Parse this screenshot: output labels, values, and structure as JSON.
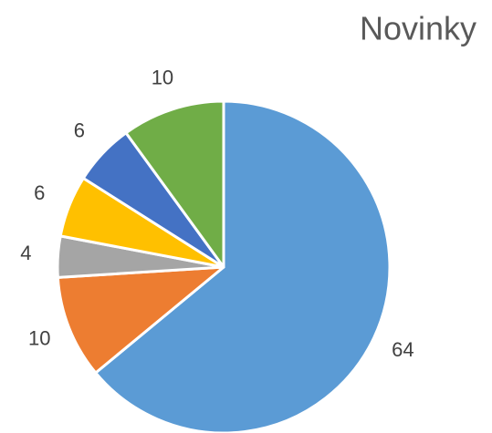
{
  "chart_data": {
    "type": "pie",
    "title": "Novinky",
    "values": [
      64,
      10,
      4,
      6,
      6,
      10
    ],
    "colors": [
      "#5b9bd5",
      "#ed7d31",
      "#a5a5a5",
      "#ffc000",
      "#4472c4",
      "#70ad47"
    ]
  }
}
